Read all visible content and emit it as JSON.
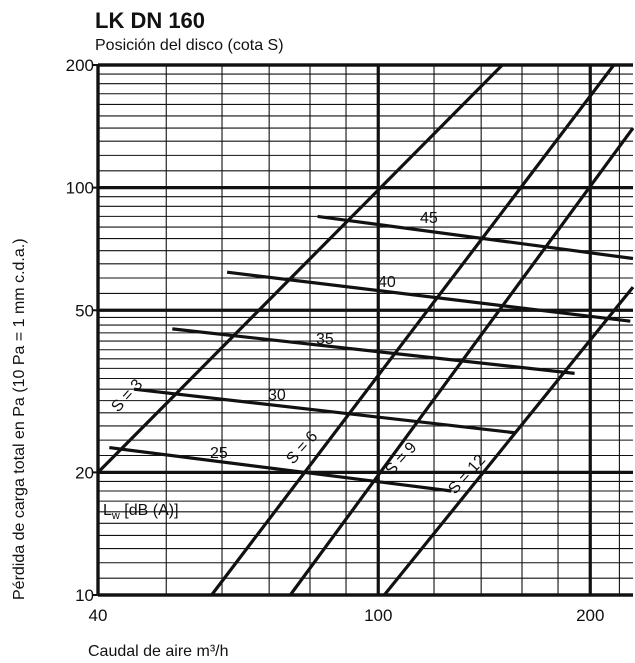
{
  "chart_data": {
    "type": "line",
    "title": "LK DN 160",
    "subtitle": "Posición del disco (cota S)",
    "xlabel": "Caudal de aire m³/h",
    "ylabel": "Pérdida de carga total en Pa (10 Pa = 1 mm c.d.a.)",
    "x_scale": "log",
    "y_scale": "log",
    "xlim": [
      40,
      230
    ],
    "ylim": [
      10,
      200
    ],
    "x_ticks": [
      40,
      100,
      200
    ],
    "y_ticks": [
      10,
      20,
      50,
      100,
      200
    ],
    "grid": true,
    "legend": "Lw [dB (A)]",
    "series": [
      {
        "name": "S = 3",
        "x": [
          40,
          150
        ],
        "y": [
          20,
          200
        ]
      },
      {
        "name": "S = 6",
        "x": [
          58,
          216
        ],
        "y": [
          10,
          200
        ]
      },
      {
        "name": "S = 9",
        "x": [
          75,
          230
        ],
        "y": [
          10,
          140
        ]
      },
      {
        "name": "S = 12",
        "x": [
          102,
          230
        ],
        "y": [
          10,
          57
        ]
      }
    ],
    "sound_lines": [
      {
        "label": "45",
        "x": [
          82,
          230
        ],
        "y": [
          85,
          67
        ]
      },
      {
        "label": "40",
        "x": [
          61,
          228
        ],
        "y": [
          62,
          47
        ]
      },
      {
        "label": "35",
        "x": [
          51,
          190
        ],
        "y": [
          45,
          35
        ]
      },
      {
        "label": "30",
        "x": [
          45,
          157
        ],
        "y": [
          32,
          25
        ]
      },
      {
        "label": "25",
        "x": [
          41.5,
          127
        ],
        "y": [
          23,
          18
        ]
      }
    ]
  },
  "curve_labels": {
    "s3": "S = 3",
    "s6": "S = 6",
    "s9": "S = 9",
    "s12": "S = 12",
    "lw45": "45",
    "lw40": "40",
    "lw35": "35",
    "lw30": "30",
    "lw25": "25"
  }
}
